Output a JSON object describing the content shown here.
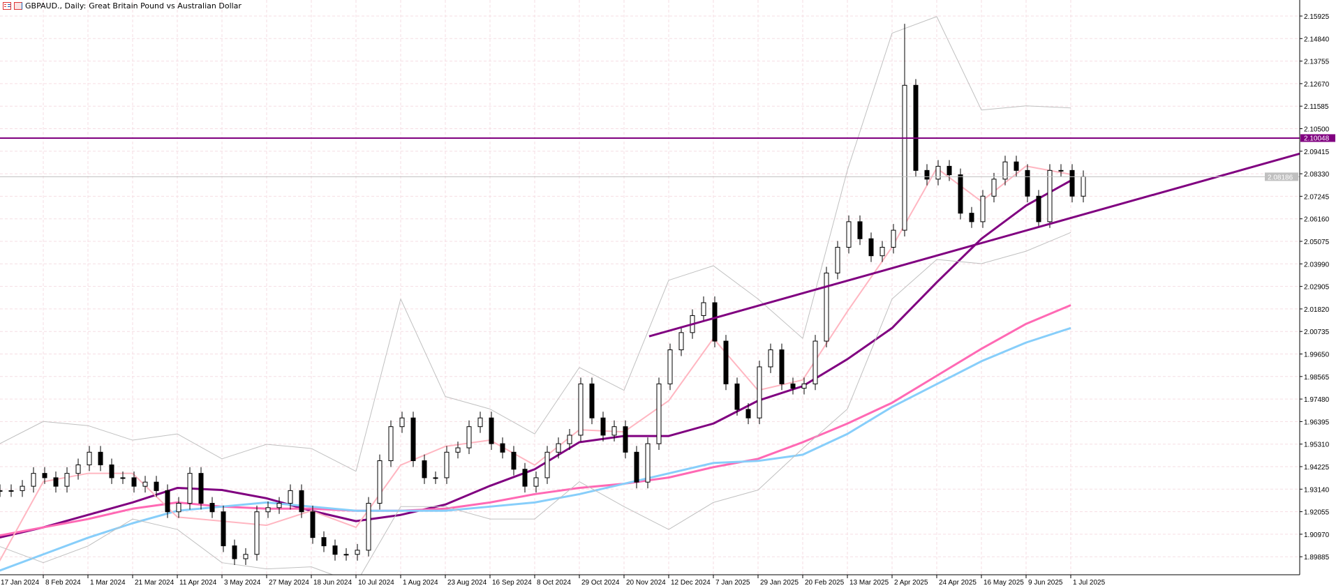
{
  "header": {
    "symbol_title": "GBPAUD., Daily:",
    "description": "Great Britain Pound vs Australian Dollar",
    "icons": [
      "chart-list-icon",
      "chart-template-icon"
    ]
  },
  "chart_data": {
    "type": "candlestick",
    "title": "GBPAUD., Daily:  Great Britain Pound vs Australian Dollar",
    "ylim": [
      1.8875,
      2.1665
    ],
    "y_ticks": [
      "2.15925",
      "2.14840",
      "2.13755",
      "2.12670",
      "2.11585",
      "2.10500",
      "2.09415",
      "2.08330",
      "2.07245",
      "2.06160",
      "2.05075",
      "2.03990",
      "2.02905",
      "2.01820",
      "2.00735",
      "1.99650",
      "1.98565",
      "1.97480",
      "1.96395",
      "1.95310",
      "1.94225",
      "1.93140",
      "1.92055",
      "1.90970",
      "1.89885"
    ],
    "x_ticks": [
      "17 Jan 2024",
      "8 Feb 2024",
      "1 Mar 2024",
      "21 Mar 2024",
      "11 Apr 2024",
      "3 May 2024",
      "27 May 2024",
      "18 Jun 2024",
      "10 Jul 2024",
      "1 Aug 2024",
      "23 Aug 2024",
      "16 Sep 2024",
      "8 Oct 2024",
      "29 Oct 2024",
      "20 Nov 2024",
      "12 Dec 2024",
      "7 Jan 2025",
      "29 Jan 2025",
      "20 Feb 2025",
      "13 Mar 2025",
      "2 Apr 2025",
      "24 Apr 2025",
      "16 May 2025",
      "9 Jun 2025",
      "1 Jul 2025"
    ],
    "closes_every_4_days": [
      1.9307,
      1.9307,
      1.9328,
      1.939,
      1.9369,
      1.9328,
      1.939,
      1.9431,
      1.9492,
      1.9431,
      1.9369,
      1.9369,
      1.9328,
      1.9348,
      1.9307,
      1.9205,
      1.9246,
      1.939,
      1.9246,
      1.9205,
      1.9041,
      1.8979,
      1.9,
      1.9205,
      1.9225,
      1.9246,
      1.9307,
      1.9205,
      1.9081,
      1.9041,
      1.9,
      1.9,
      1.902,
      1.9246,
      1.9451,
      1.9615,
      1.9657,
      1.9451,
      1.9369,
      1.9369,
      1.9492,
      1.9513,
      1.9615,
      1.9657,
      1.9533,
      1.9492,
      1.941,
      1.9328,
      1.9369,
      1.9492,
      1.9533,
      1.9574,
      1.9821,
      1.9657,
      1.9574,
      1.9615,
      1.9492,
      1.9348,
      1.9533,
      1.9821,
      1.9985,
      2.0068,
      2.015,
      2.0212,
      2.0027,
      1.9821,
      1.9698,
      1.9657,
      1.9903,
      1.9985,
      1.9821,
      1.98,
      1.9821,
      2.0027,
      2.0355,
      2.0479,
      2.0602,
      2.052,
      2.0438,
      2.0479,
      2.0561,
      2.1259,
      2.0849,
      2.0807,
      2.0869,
      2.0828,
      2.0643,
      2.0602,
      2.0725,
      2.0807,
      2.089,
      2.0849,
      2.0725,
      2.0602,
      2.0849,
      2.0849,
      2.0725,
      2.0819
    ],
    "spike_high": 2.1555,
    "indicators_at_x_ticks": [
      {
        "color": "#800080",
        "values": [
          1.908,
          1.913,
          1.919,
          1.925,
          1.932,
          1.931,
          1.927,
          1.921,
          1.916,
          1.919,
          1.924,
          1.933,
          1.941,
          1.954,
          1.957,
          1.957,
          1.963,
          1.974,
          1.981,
          1.994,
          2.009,
          2.031,
          2.052,
          2.068,
          2.08
        ]
      },
      {
        "color": "#ff69b4",
        "values": [
          1.909,
          1.913,
          1.917,
          1.922,
          1.925,
          1.923,
          1.922,
          1.922,
          1.921,
          1.921,
          1.922,
          1.925,
          1.929,
          1.932,
          1.934,
          1.937,
          1.942,
          1.946,
          1.954,
          1.963,
          1.973,
          1.986,
          1.999,
          2.011,
          2.02
        ]
      },
      {
        "color": "#87cefa",
        "values": [
          1.892,
          1.9,
          1.908,
          1.915,
          1.921,
          1.923,
          1.925,
          1.923,
          1.921,
          1.921,
          1.921,
          1.923,
          1.925,
          1.929,
          1.934,
          1.939,
          1.944,
          1.945,
          1.948,
          1.958,
          1.971,
          1.982,
          1.993,
          2.002,
          2.009
        ]
      },
      {
        "color": "#ffb6c1",
        "values": [
          1.896,
          1.935,
          1.939,
          1.939,
          1.918,
          1.916,
          1.914,
          1.921,
          1.913,
          1.943,
          1.952,
          1.955,
          1.943,
          1.96,
          1.959,
          1.974,
          2.004,
          1.979,
          1.984,
          2.017,
          2.048,
          2.086,
          2.07,
          2.087,
          2.083
        ]
      },
      {
        "color": "#c0c0c0",
        "values": [
          1.953,
          1.964,
          1.962,
          1.955,
          1.958,
          1.946,
          1.953,
          1.951,
          1.94,
          2.023,
          1.976,
          1.97,
          1.958,
          1.99,
          1.979,
          2.032,
          2.039,
          2.023,
          2.004,
          2.085,
          2.151,
          2.159,
          2.114,
          2.116,
          2.115
        ]
      },
      {
        "color": "#c0c0c0",
        "values": [
          1.904,
          1.896,
          1.904,
          1.917,
          1.912,
          1.896,
          1.893,
          1.894,
          1.886,
          1.923,
          1.923,
          1.917,
          1.917,
          1.935,
          1.923,
          1.912,
          1.925,
          1.931,
          1.951,
          1.97,
          2.023,
          2.042,
          2.04,
          2.046,
          2.055
        ]
      }
    ],
    "horizontal_line": {
      "price": "2.10048",
      "color": "#800080"
    },
    "current_price": {
      "price": "2.08186",
      "color": "#c0c0c0"
    },
    "trendline": {
      "color": "#800080",
      "from": {
        "date": "4 Dec 2024",
        "price": 2.005
      },
      "through": {
        "date": "1 Jul 2025",
        "price": 2.062
      }
    },
    "grid": true
  }
}
